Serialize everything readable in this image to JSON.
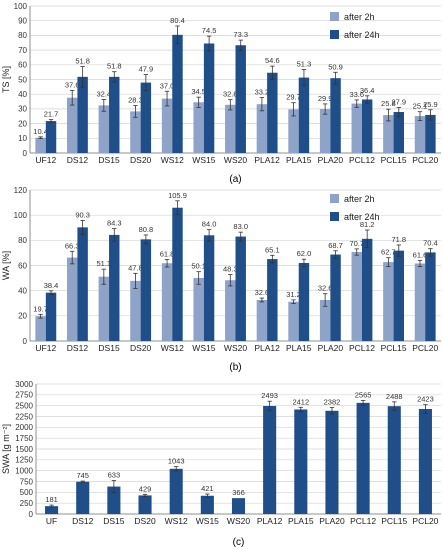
{
  "colors": {
    "after_2h": "#8EA3C7",
    "after_24h": "#1F4E89",
    "single": "#1F4E89"
  },
  "chart_data": [
    {
      "type": "bar",
      "panel_label": "(a)",
      "ylabel": "TS [%]",
      "ylim": [
        0,
        100
      ],
      "yticks": [
        0,
        10,
        20,
        30,
        40,
        50,
        60,
        70,
        80,
        90,
        100
      ],
      "grid": true,
      "legend": "top-right",
      "categories": [
        "UF12",
        "DS12",
        "DS15",
        "DS20",
        "WS12",
        "WS15",
        "WS20",
        "PLA12",
        "PLA15",
        "PLA20",
        "PCL12",
        "PCL15",
        "PCL20"
      ],
      "series": [
        {
          "name": "after 2h",
          "values": [
            10.4,
            37.6,
            32.4,
            28.3,
            37.0,
            34.5,
            32.8,
            33.2,
            29.7,
            29.9,
            33.6,
            25.8,
            25.1
          ],
          "errors": [
            0.6,
            5.0,
            4.0,
            4.0,
            5.0,
            3.5,
            3.5,
            4.5,
            4.5,
            3.5,
            2.5,
            4.0,
            3.0
          ]
        },
        {
          "name": "after 24h",
          "values": [
            21.7,
            51.8,
            51.8,
            47.9,
            80.4,
            74.5,
            73.3,
            54.6,
            51.3,
            50.9,
            36.4,
            27.9,
            25.9
          ],
          "errors": [
            1.0,
            7.0,
            3.5,
            5.5,
            6.0,
            5.0,
            3.5,
            4.5,
            5.5,
            4.0,
            2.5,
            3.0,
            3.5
          ]
        }
      ]
    },
    {
      "type": "bar",
      "panel_label": "(b)",
      "ylabel": "WA [%]",
      "ylim": [
        0,
        120
      ],
      "yticks": [
        0,
        20,
        40,
        60,
        80,
        100,
        120
      ],
      "grid": true,
      "legend": "top-right",
      "categories": [
        "UF12",
        "DS12",
        "DS15",
        "DS20",
        "WS12",
        "WS15",
        "WS20",
        "PLA12",
        "PLA15",
        "PLA20",
        "PCL12",
        "PCL15",
        "PCL20"
      ],
      "series": [
        {
          "name": "after 2h",
          "values": [
            19.7,
            66.3,
            51.1,
            47.8,
            61.8,
            50.1,
            48.3,
            32.6,
            31.2,
            32.6,
            70.7,
            62.7,
            61.6
          ],
          "errors": [
            1.5,
            5.0,
            6.0,
            6.0,
            3.0,
            5.0,
            4.5,
            1.5,
            1.5,
            5.0,
            2.5,
            3.5,
            2.5
          ]
        },
        {
          "name": "after 24h",
          "values": [
            38.4,
            90.3,
            84.3,
            80.8,
            105.9,
            84.0,
            83.0,
            65.1,
            62.0,
            68.7,
            81.2,
            71.8,
            70.4
          ],
          "errors": [
            1.5,
            5.5,
            5.0,
            3.5,
            5.5,
            4.5,
            3.5,
            3.0,
            3.0,
            3.0,
            7.0,
            4.5,
            3.0
          ]
        }
      ]
    },
    {
      "type": "bar",
      "panel_label": "(c)",
      "ylabel": "SWA [g m⁻²]",
      "ylim": [
        0,
        3000
      ],
      "yticks": [
        0,
        250,
        500,
        750,
        1000,
        1250,
        1500,
        1750,
        2000,
        2250,
        2500,
        2750,
        3000
      ],
      "grid": true,
      "categories": [
        "UF",
        "DS12",
        "DS15",
        "DS20",
        "WS12",
        "WS15",
        "WS20",
        "PLA12",
        "PLA15",
        "PLA20",
        "PCL12",
        "PCL15",
        "PCL20"
      ],
      "series": [
        {
          "values": [
            181,
            745,
            633,
            429,
            1043,
            421,
            366,
            2493,
            2412,
            2382,
            2565,
            2488,
            2423
          ],
          "errors": [
            25,
            15,
            140,
            25,
            50,
            40,
            0,
            110,
            50,
            75,
            55,
            100,
            100
          ]
        }
      ]
    }
  ]
}
